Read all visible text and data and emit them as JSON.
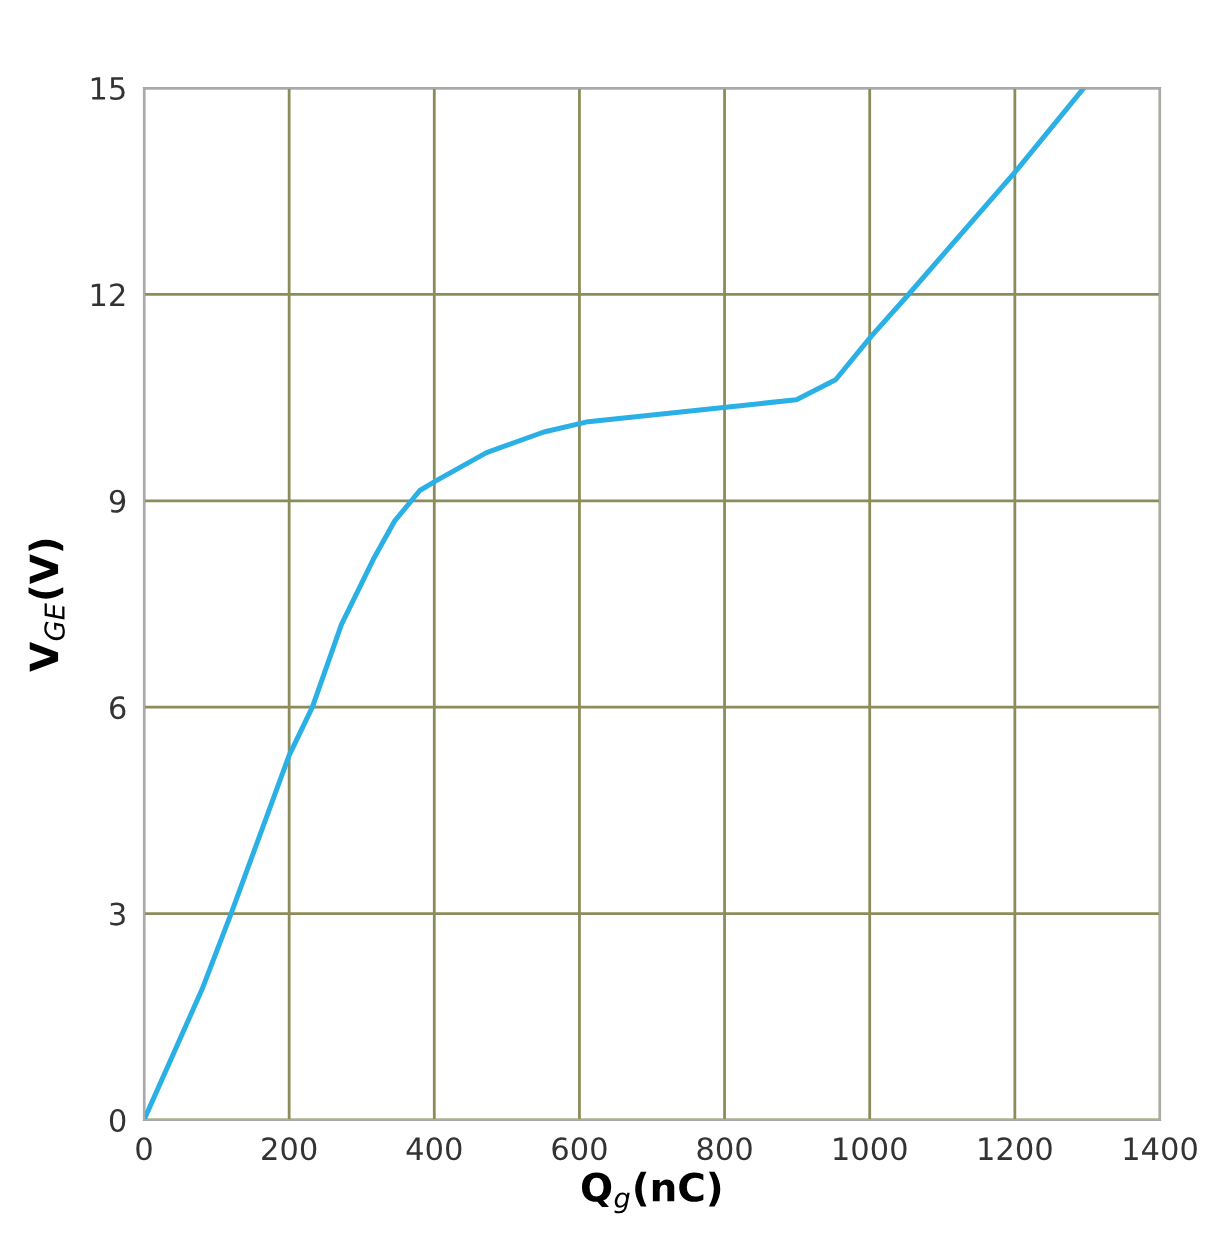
{
  "chart_data": {
    "type": "line",
    "xlabel": "Q$_{g}$(nC)",
    "ylabel": "V$_{GE}$(V)",
    "x": [
      0,
      80,
      120,
      200,
      232,
      272,
      316,
      345,
      380,
      404,
      472,
      551,
      612,
      802,
      899,
      953,
      1002,
      1051,
      1202,
      1295
    ],
    "series": [
      {
        "color": "#2ab0e4",
        "values": [
          0,
          1.9,
          3.0,
          5.3,
          6.0,
          7.2,
          8.15,
          8.7,
          9.15,
          9.3,
          9.7,
          10.0,
          10.15,
          10.36,
          10.47,
          10.76,
          11.39,
          11.97,
          13.8,
          15
        ]
      }
    ],
    "xlim": [
      0,
      1400
    ],
    "ylim": [
      0,
      15
    ],
    "xticks": [
      0,
      200,
      400,
      600,
      800,
      1000,
      1200,
      1400
    ],
    "yticks": [
      0,
      3,
      6,
      9,
      12,
      15
    ],
    "grid": true,
    "legend": false,
    "marker": "none",
    "line_style": "solid"
  }
}
